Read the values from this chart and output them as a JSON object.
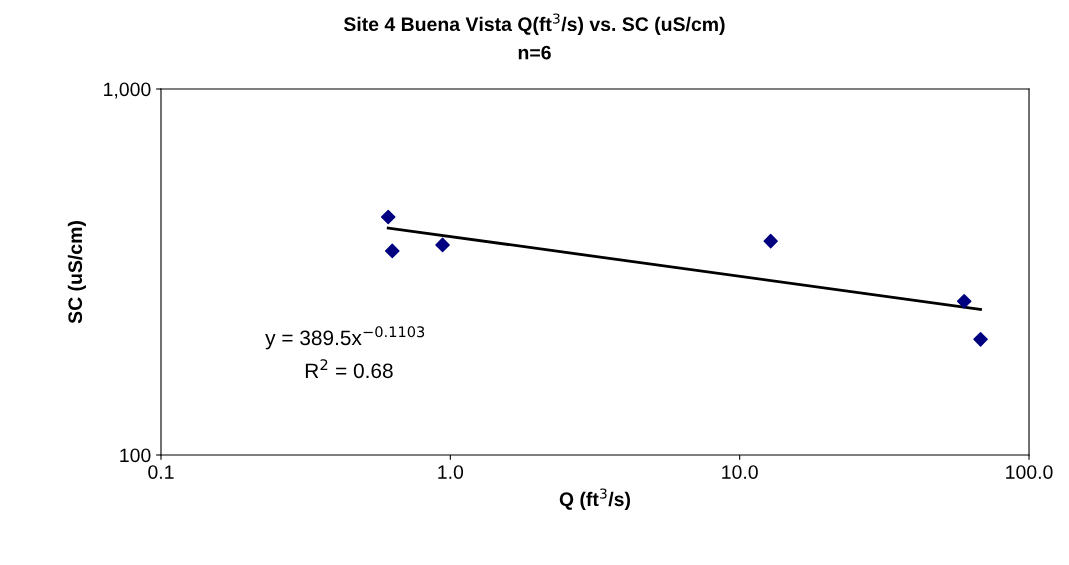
{
  "chart_data": {
    "type": "scatter",
    "title": "Site 4 Buena Vista Q(ft$^{3}$/s) vs. SC (uS/cm)",
    "subtitle": "n=6",
    "xlabel": "Q (ft$^{3}$/s)",
    "ylabel": "SC (uS/cm)",
    "log": "xy",
    "grid": false,
    "legend": false,
    "marker": "diamond",
    "xlim": [
      0.1,
      100
    ],
    "xticks": [
      0.1,
      {
        "value": 1,
        "label": "1.0"
      },
      {
        "value": 10,
        "label": "10.0"
      },
      {
        "value": 100,
        "label": "100.0"
      }
    ],
    "ylim": [
      100,
      1000
    ],
    "yticks": [
      100,
      {
        "value": 1000,
        "label": "1,000"
      }
    ],
    "series": [
      {
        "color": "#000080",
        "x": [
          0.61,
          0.63,
          0.94,
          12.8,
          59.7,
          68
        ],
        "values": [
          447,
          361,
          375,
          384,
          263,
          207
        ]
      },
      {
        "type": "line",
        "color": "#000000",
        "marker": "none",
        "x": [
          0.61,
          68
        ],
        "values": [
          417,
          250
        ]
      }
    ],
    "annotations": [
      "y = 389.5x$^{−0.1103}$",
      "R$^{2}$ = 0.68"
    ]
  }
}
